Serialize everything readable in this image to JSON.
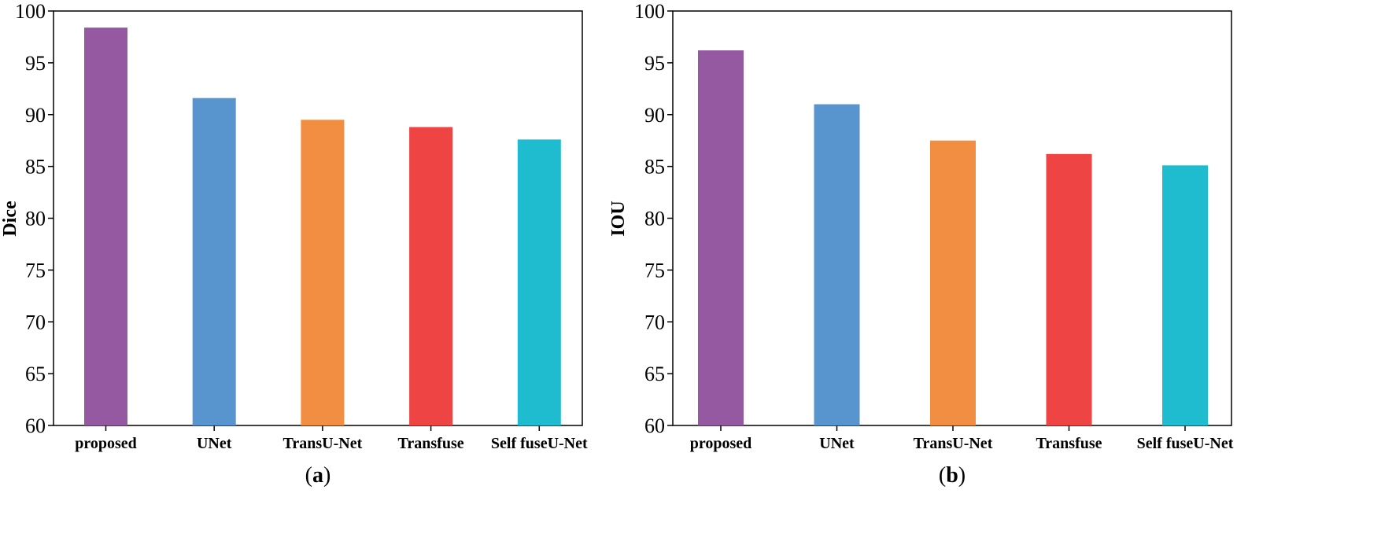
{
  "figure": {
    "categories": [
      "proposed",
      "UNet",
      "TransU-Net",
      "Transfuse",
      "Self fuseU-Net"
    ],
    "colors": [
      "#9459a1",
      "#5895cf",
      "#f28e41",
      "#ee4444",
      "#1fbccf"
    ]
  },
  "chart_data": [
    {
      "type": "bar",
      "panel": "a",
      "caption": "a",
      "title": "",
      "xlabel": "",
      "ylabel": "Dice",
      "categories": [
        "proposed",
        "UNet",
        "TransU-Net",
        "Transfuse",
        "Self fuseU-Net"
      ],
      "values": [
        98.4,
        91.6,
        89.5,
        88.8,
        87.6
      ],
      "ylim": [
        60,
        100
      ],
      "yticks": [
        60,
        65,
        70,
        75,
        80,
        85,
        90,
        95,
        100
      ],
      "grid": false
    },
    {
      "type": "bar",
      "panel": "b",
      "caption": "b",
      "title": "",
      "xlabel": "",
      "ylabel": "IOU",
      "categories": [
        "proposed",
        "UNet",
        "TransU-Net",
        "Transfuse",
        "Self fuseU-Net"
      ],
      "values": [
        96.2,
        91.0,
        87.5,
        86.2,
        85.1
      ],
      "ylim": [
        60,
        100
      ],
      "yticks": [
        60,
        65,
        70,
        75,
        80,
        85,
        90,
        95,
        100
      ],
      "grid": false
    }
  ]
}
